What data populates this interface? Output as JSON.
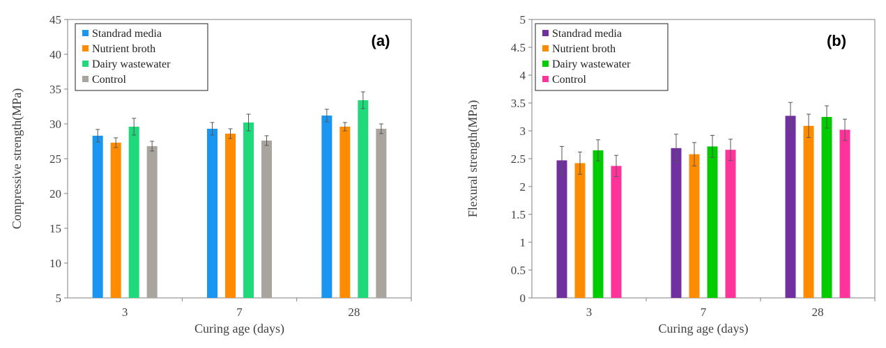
{
  "chart_data": [
    {
      "type": "bar",
      "panel_label": "(a)",
      "categories": [
        "3",
        "7",
        "28"
      ],
      "xlabel": "Curing age (days)",
      "ylabel": "Compressive strength(MPa)",
      "ylim": [
        5,
        45
      ],
      "yticks": [
        5,
        10,
        15,
        20,
        25,
        30,
        35,
        40,
        45
      ],
      "legend_position": "top-left",
      "series": [
        {
          "name": "Standrad media",
          "color": "#1a96f0",
          "values": [
            28.3,
            29.3,
            31.2
          ],
          "errors": [
            0.9,
            0.9,
            0.9
          ]
        },
        {
          "name": "Nutrient broth",
          "color": "#ff8c00",
          "values": [
            27.3,
            28.6,
            29.6
          ],
          "errors": [
            0.7,
            0.7,
            0.6
          ]
        },
        {
          "name": "Dairy wastewater",
          "color": "#1fd97a",
          "values": [
            29.6,
            30.2,
            33.4
          ],
          "errors": [
            1.2,
            1.2,
            1.2
          ]
        },
        {
          "name": "Control",
          "color": "#aaa49f",
          "values": [
            26.8,
            27.6,
            29.3
          ],
          "errors": [
            0.7,
            0.7,
            0.7
          ]
        }
      ]
    },
    {
      "type": "bar",
      "panel_label": "(b)",
      "categories": [
        "3",
        "7",
        "28"
      ],
      "xlabel": "Curing age (days)",
      "ylabel": "Flexural strength(MPa)",
      "ylim": [
        0,
        5
      ],
      "yticks": [
        0,
        0.5,
        1,
        1.5,
        2,
        2.5,
        3,
        3.5,
        4,
        4.5,
        5
      ],
      "legend_position": "top-left",
      "series": [
        {
          "name": "Standrad media",
          "color": "#7030a0",
          "values": [
            2.47,
            2.69,
            3.27
          ],
          "errors": [
            0.25,
            0.25,
            0.24
          ]
        },
        {
          "name": "Nutrient broth",
          "color": "#ff8c00",
          "values": [
            2.42,
            2.58,
            3.09
          ],
          "errors": [
            0.2,
            0.21,
            0.21
          ]
        },
        {
          "name": "Dairy wastewater",
          "color": "#00cc00",
          "values": [
            2.65,
            2.72,
            3.25
          ],
          "errors": [
            0.19,
            0.2,
            0.2
          ]
        },
        {
          "name": "Control",
          "color": "#ff3399",
          "values": [
            2.37,
            2.66,
            3.02
          ],
          "errors": [
            0.19,
            0.19,
            0.19
          ]
        }
      ]
    }
  ]
}
